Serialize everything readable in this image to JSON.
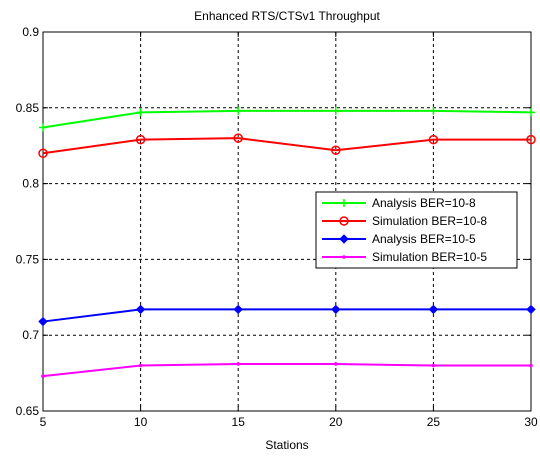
{
  "chart_data": {
    "type": "line",
    "title": "Enhanced RTS/CTSv1 Throughput",
    "xlabel": "Stations",
    "ylabel": "",
    "x": [
      5,
      10,
      15,
      20,
      25,
      30
    ],
    "xlim": [
      5,
      30
    ],
    "ylim": [
      0.65,
      0.9
    ],
    "xticks": [
      "5",
      "10",
      "15",
      "20",
      "25",
      "30"
    ],
    "yticks": [
      "0.65",
      "0.7",
      "0.75",
      "0.8",
      "0.85",
      "0.9"
    ],
    "grid": true,
    "legend_position": "right",
    "series": [
      {
        "name": "Analysis BER=10-8",
        "color": "#00ff00",
        "marker": "plus",
        "values": [
          0.837,
          0.847,
          0.848,
          0.848,
          0.848,
          0.847
        ]
      },
      {
        "name": "Simulation BER=10-8",
        "color": "#ff0000",
        "marker": "circle",
        "values": [
          0.82,
          0.829,
          0.83,
          0.822,
          0.829,
          0.829
        ]
      },
      {
        "name": "Analysis BER=10-5",
        "color": "#0000ff",
        "marker": "diamond",
        "values": [
          0.709,
          0.717,
          0.717,
          0.717,
          0.717,
          0.717
        ]
      },
      {
        "name": "Simulation BER=10-5",
        "color": "#ff00ff",
        "marker": "point",
        "values": [
          0.673,
          0.68,
          0.681,
          0.681,
          0.68,
          0.68
        ]
      }
    ]
  }
}
